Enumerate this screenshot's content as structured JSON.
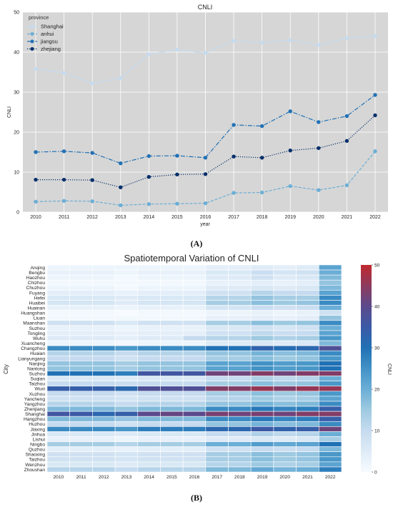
{
  "panel_labels": [
    "(A)",
    "(B)"
  ],
  "chart_data": [
    {
      "type": "line",
      "title": "CNLI",
      "xlabel": "year",
      "ylabel": "CNLI",
      "ylim": [
        0,
        50
      ],
      "yticks": [
        0,
        10,
        20,
        30,
        40,
        50
      ],
      "grid": true,
      "legend": {
        "title": "province",
        "placement": "top-left"
      },
      "x": [
        2010,
        2011,
        2012,
        2013,
        2014,
        2015,
        2016,
        2017,
        2018,
        2019,
        2020,
        2021,
        2022
      ],
      "series": [
        {
          "name": "Shanghai",
          "color": "#c6dbef",
          "dash": "solid",
          "values": [
            35.8,
            34.8,
            32.2,
            33.5,
            39.5,
            40.6,
            39.8,
            42.8,
            42.4,
            43.0,
            41.8,
            43.5,
            44.0
          ]
        },
        {
          "name": "anhui",
          "color": "#6baed6",
          "dash": "dashed",
          "values": [
            2.6,
            2.8,
            2.7,
            1.7,
            2.0,
            2.1,
            2.2,
            4.8,
            4.9,
            6.5,
            5.5,
            6.7,
            15.2
          ]
        },
        {
          "name": "jiangsu",
          "color": "#2171b5",
          "dash": "dashdot",
          "values": [
            15.0,
            15.2,
            14.8,
            12.2,
            14.0,
            14.1,
            13.6,
            21.8,
            21.5,
            25.2,
            22.5,
            24.0,
            29.3
          ]
        },
        {
          "name": "zhejiang",
          "color": "#08306b",
          "dash": "dotted",
          "values": [
            8.1,
            8.1,
            8.0,
            6.2,
            8.8,
            9.4,
            9.5,
            13.9,
            13.6,
            15.4,
            16.0,
            17.8,
            24.2
          ]
        }
      ]
    },
    {
      "type": "heatmap",
      "title": "Spatiotemporal Variation of CNLI",
      "xlabel": "",
      "ylabel": "City",
      "colorbar_label": "CNLI",
      "colorbar_range": [
        0,
        50
      ],
      "colorbar_ticks": [
        0,
        10,
        20,
        30,
        40,
        50
      ],
      "colormap": [
        "#f7fbff",
        "#deebf7",
        "#c6dbef",
        "#9ecae1",
        "#6baed6",
        "#4292c6",
        "#2171b5",
        "#3c5aa6",
        "#5b4a8c",
        "#8c3a5e",
        "#c0282d"
      ],
      "x": [
        2010,
        2011,
        2012,
        2013,
        2014,
        2015,
        2016,
        2017,
        2018,
        2019,
        2020,
        2021,
        2022
      ],
      "y": [
        "Anqing",
        "Bengbu",
        "Haozhou",
        "Chizhou",
        "Chuzhou",
        "Fuyang",
        "Hefei",
        "Huaibei",
        "Huainan",
        "Huangshan",
        "Liuan",
        "Maanshan",
        "Suzhou",
        "Tongling",
        "Wuhu",
        "Xuancheng",
        "Changzhou",
        "Huaian",
        "Lianyungang",
        "Nanjing",
        "Nantong",
        "Suzhou",
        "Suqian",
        "Taizhou",
        "Wuxi",
        "Xuzhou",
        "Yancheng",
        "Yangzhou",
        "Zhenjiang",
        "Shanghai",
        "Hangzhou",
        "Huzhou",
        "Jiaxing",
        "Jinhua",
        "Lishui",
        "Ningbo",
        "Quzhou",
        "Shaoxing",
        "Taizhou",
        "Wenzhou",
        "Zhoushan"
      ],
      "values": [
        [
          2,
          2,
          2,
          2,
          2,
          2,
          2,
          4,
          4,
          5,
          4,
          5,
          22
        ],
        [
          3,
          3,
          3,
          2,
          3,
          3,
          3,
          6,
          6,
          9,
          7,
          8,
          20
        ],
        [
          2,
          2,
          2,
          1,
          2,
          2,
          2,
          5,
          5,
          8,
          5,
          6,
          18
        ],
        [
          1,
          1,
          1,
          1,
          1,
          1,
          1,
          3,
          3,
          4,
          3,
          4,
          16
        ],
        [
          2,
          2,
          2,
          1,
          2,
          2,
          2,
          5,
          5,
          6,
          5,
          6,
          18
        ],
        [
          4,
          4,
          4,
          3,
          4,
          4,
          4,
          8,
          8,
          12,
          10,
          10,
          22
        ],
        [
          6,
          6,
          6,
          5,
          6,
          6,
          6,
          12,
          12,
          16,
          14,
          14,
          26
        ],
        [
          7,
          7,
          7,
          5,
          7,
          7,
          7,
          14,
          14,
          17,
          15,
          16,
          26
        ],
        [
          3,
          3,
          3,
          2,
          3,
          3,
          3,
          7,
          7,
          9,
          8,
          9,
          20
        ],
        [
          1,
          1,
          1,
          0,
          1,
          1,
          1,
          2,
          2,
          3,
          2,
          3,
          8
        ],
        [
          1,
          1,
          1,
          1,
          1,
          1,
          1,
          3,
          3,
          4,
          3,
          4,
          16
        ],
        [
          8,
          8,
          8,
          6,
          8,
          8,
          8,
          14,
          14,
          17,
          15,
          16,
          26
        ],
        [
          3,
          3,
          3,
          2,
          3,
          3,
          3,
          6,
          6,
          8,
          7,
          8,
          20
        ],
        [
          4,
          4,
          4,
          3,
          4,
          4,
          4,
          8,
          8,
          11,
          9,
          10,
          22
        ],
        [
          5,
          5,
          5,
          4,
          5,
          5,
          10,
          12,
          12,
          15,
          13,
          14,
          24
        ],
        [
          2,
          2,
          2,
          1,
          2,
          2,
          2,
          5,
          5,
          6,
          5,
          6,
          18
        ],
        [
          26,
          26,
          26,
          24,
          26,
          26,
          26,
          30,
          30,
          33,
          31,
          32,
          38
        ],
        [
          12,
          12,
          12,
          10,
          12,
          12,
          12,
          16,
          16,
          19,
          17,
          18,
          26
        ],
        [
          10,
          10,
          10,
          8,
          10,
          10,
          10,
          14,
          14,
          17,
          15,
          16,
          24
        ],
        [
          16,
          16,
          16,
          14,
          16,
          16,
          16,
          22,
          22,
          25,
          23,
          24,
          30
        ],
        [
          16,
          16,
          16,
          14,
          16,
          16,
          16,
          22,
          22,
          25,
          23,
          24,
          30
        ],
        [
          30,
          30,
          30,
          28,
          36,
          36,
          36,
          42,
          42,
          44,
          42,
          44,
          44
        ],
        [
          6,
          6,
          6,
          5,
          6,
          6,
          6,
          10,
          10,
          13,
          11,
          12,
          20
        ],
        [
          10,
          10,
          10,
          9,
          10,
          10,
          10,
          14,
          14,
          17,
          15,
          16,
          24
        ],
        [
          34,
          34,
          34,
          32,
          38,
          38,
          38,
          44,
          44,
          46,
          44,
          46,
          46
        ],
        [
          10,
          10,
          10,
          8,
          10,
          10,
          10,
          14,
          14,
          17,
          15,
          16,
          24
        ],
        [
          8,
          8,
          8,
          7,
          8,
          8,
          8,
          12,
          12,
          15,
          13,
          14,
          22
        ],
        [
          12,
          12,
          12,
          10,
          12,
          12,
          12,
          16,
          16,
          19,
          17,
          18,
          26
        ],
        [
          18,
          18,
          18,
          16,
          18,
          18,
          18,
          26,
          26,
          29,
          27,
          28,
          34
        ],
        [
          36,
          35,
          32,
          34,
          40,
          41,
          40,
          43,
          42,
          43,
          42,
          44,
          44
        ],
        [
          18,
          18,
          18,
          16,
          18,
          18,
          18,
          26,
          26,
          29,
          27,
          28,
          34
        ],
        [
          10,
          10,
          10,
          8,
          10,
          10,
          10,
          16,
          16,
          19,
          17,
          18,
          26
        ],
        [
          26,
          26,
          26,
          24,
          28,
          28,
          28,
          32,
          32,
          35,
          33,
          34,
          42
        ],
        [
          6,
          6,
          6,
          5,
          6,
          6,
          6,
          10,
          10,
          13,
          11,
          12,
          20
        ],
        [
          3,
          3,
          3,
          2,
          3,
          3,
          3,
          5,
          5,
          6,
          5,
          6,
          14
        ],
        [
          14,
          14,
          14,
          12,
          14,
          14,
          14,
          20,
          20,
          23,
          21,
          22,
          30
        ],
        [
          4,
          4,
          4,
          3,
          4,
          4,
          4,
          8,
          8,
          10,
          9,
          10,
          18
        ],
        [
          8,
          8,
          8,
          7,
          8,
          8,
          8,
          14,
          14,
          17,
          15,
          16,
          24
        ],
        [
          8,
          8,
          8,
          7,
          8,
          8,
          8,
          14,
          14,
          17,
          15,
          16,
          24
        ],
        [
          6,
          6,
          6,
          5,
          6,
          6,
          6,
          12,
          12,
          15,
          13,
          14,
          22
        ],
        [
          12,
          12,
          12,
          10,
          12,
          12,
          12,
          18,
          18,
          21,
          19,
          20,
          28
        ]
      ]
    }
  ]
}
